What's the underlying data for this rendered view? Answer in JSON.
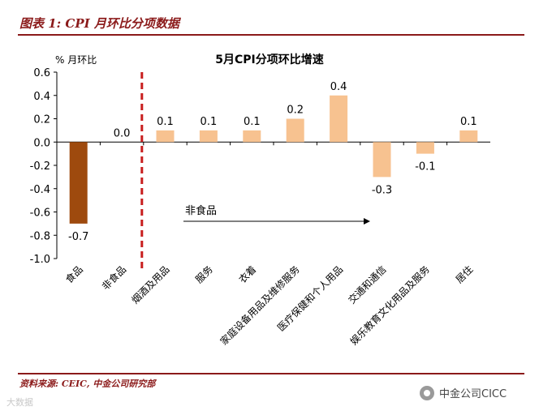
{
  "figure_title": "图表 1: CPI 月环比分项数据",
  "source_note": "资料来源: CEIC, 中金公司研究部",
  "watermark_left": "大数据",
  "watermark_right": "中金公司CICC",
  "colors": {
    "food": "#9e4a0e",
    "nonfood": "#f7c290",
    "divider": "#c81e1e",
    "title_red": "#8b1a1a"
  },
  "chart_data": {
    "type": "bar",
    "title": "5月CPI分项环比增速",
    "ylabel": "% 月环比",
    "xlabel": "",
    "ylim": [
      -1.0,
      0.6
    ],
    "yticks": [
      0.6,
      0.4,
      0.2,
      0.0,
      -0.2,
      -0.4,
      -0.6,
      -0.8,
      -1.0
    ],
    "ytick_labels": [
      "0.6",
      "0.4",
      "0.2",
      "0.0",
      "-0.2",
      "-0.4",
      "-0.6",
      "-0.8",
      "-1.0"
    ],
    "categories": [
      "食品",
      "非食品",
      "烟酒及用品",
      "服务",
      "衣着",
      "家庭设备用品及维修服务",
      "医疗保健和个人用品",
      "交通和通信",
      "娱乐教育文化用品及服务",
      "居住"
    ],
    "values": [
      -0.7,
      0.0,
      0.1,
      0.1,
      0.1,
      0.2,
      0.4,
      -0.3,
      -0.1,
      0.1
    ],
    "value_labels": [
      "-0.7",
      "0.0",
      "0.1",
      "0.1",
      "0.1",
      "0.2",
      "0.4",
      "-0.3",
      "-0.1",
      "0.1"
    ],
    "annotation": "非食品",
    "grid": false
  }
}
